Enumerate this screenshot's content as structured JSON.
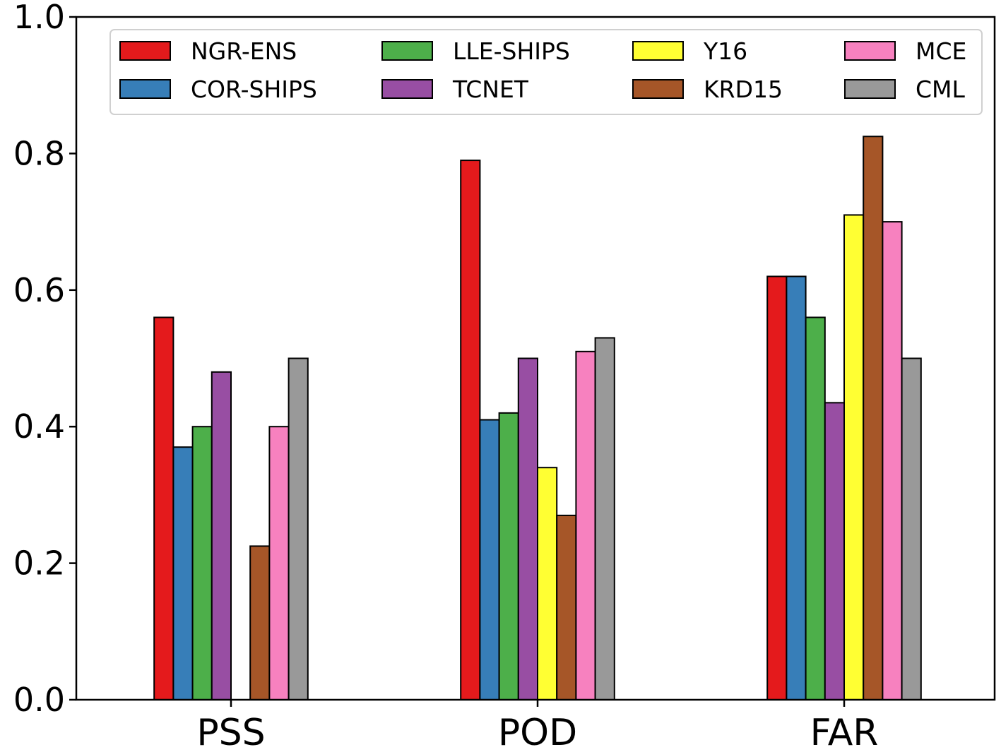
{
  "chart_data": {
    "type": "bar",
    "title": "",
    "xlabel": "",
    "ylabel": "",
    "categories": [
      "PSS",
      "POD",
      "FAR"
    ],
    "ylim": [
      0.0,
      1.0
    ],
    "yticks": [
      "0.0",
      "0.2",
      "0.4",
      "0.6",
      "0.8",
      "1.0"
    ],
    "grid": false,
    "legend_position": "top",
    "series": [
      {
        "name": "NGR-ENS",
        "color": "#e41a1c",
        "values": [
          0.56,
          0.79,
          0.62
        ]
      },
      {
        "name": "COR-SHIPS",
        "color": "#377eb8",
        "values": [
          0.37,
          0.41,
          0.62
        ]
      },
      {
        "name": "LLE-SHIPS",
        "color": "#4daf4a",
        "values": [
          0.4,
          0.42,
          0.56
        ]
      },
      {
        "name": "TCNET",
        "color": "#984ea3",
        "values": [
          0.48,
          0.5,
          0.435
        ]
      },
      {
        "name": "Y16",
        "color": "#ffff33",
        "values": [
          0.0,
          0.34,
          0.71
        ]
      },
      {
        "name": "KRD15",
        "color": "#a65628",
        "values": [
          0.225,
          0.27,
          0.825
        ]
      },
      {
        "name": "MCE",
        "color": "#f781bf",
        "values": [
          0.4,
          0.51,
          0.7
        ]
      },
      {
        "name": "CML",
        "color": "#999999",
        "values": [
          0.5,
          0.53,
          0.5
        ]
      }
    ]
  }
}
